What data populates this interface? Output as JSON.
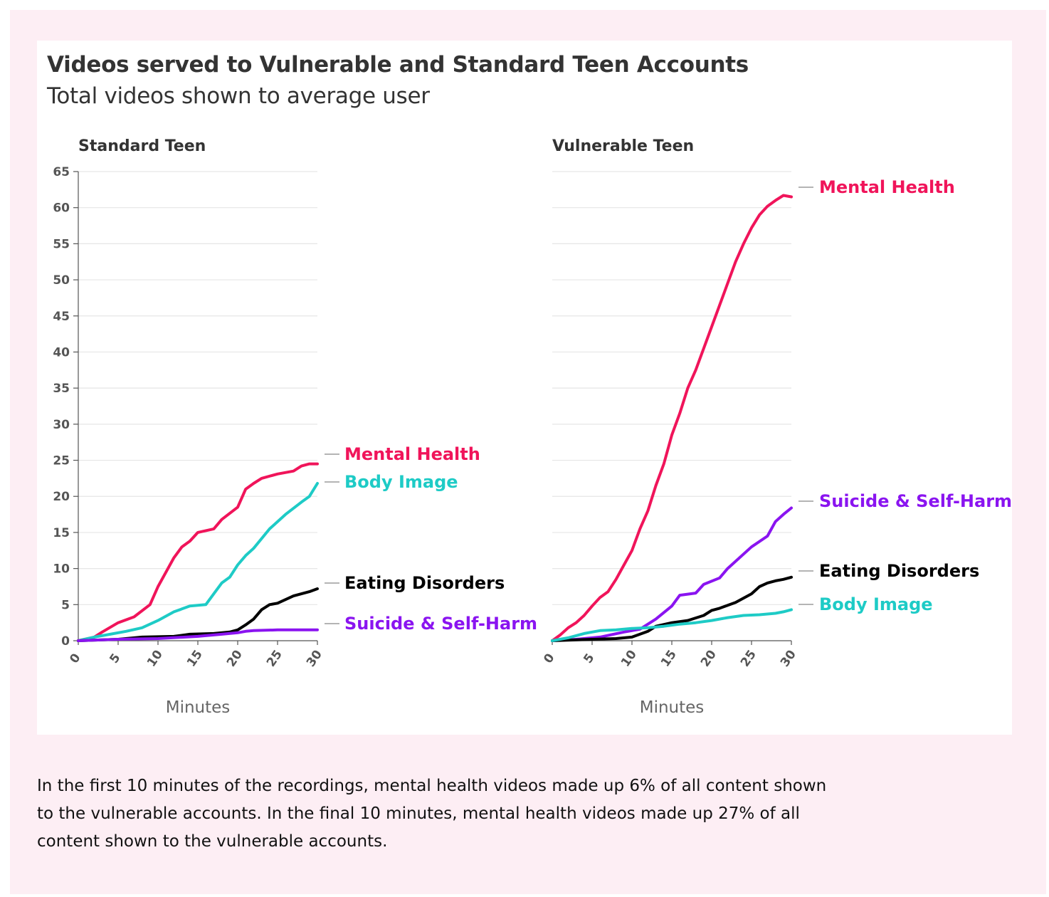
{
  "title": "Videos served to Vulnerable and Standard Teen Accounts",
  "subtitle": "Total videos shown to average user",
  "caption": "In the first 10 minutes of the recordings, mental health videos made up 6% of all content shown to the vulnerable accounts. In the final 10 minutes, mental health videos made up 27% of all content shown to the vulnerable accounts.",
  "colors": {
    "page_background": "#fdeef4",
    "mental_health": "#f0145a",
    "body_image": "#1ecbc6",
    "eating_disorders": "#000000",
    "suicide_self_harm": "#8a14f0"
  },
  "chart_data": [
    {
      "type": "line",
      "panel_title": "Standard Teen",
      "xlabel": "Minutes",
      "ylabel": "",
      "xlim": [
        0,
        30
      ],
      "ylim": [
        0,
        65
      ],
      "x_ticks": [
        "0",
        "5",
        "10",
        "15",
        "20",
        "25",
        "30"
      ],
      "y_ticks": [
        "0",
        "5",
        "10",
        "15",
        "20",
        "25",
        "30",
        "35",
        "40",
        "45",
        "50",
        "55",
        "60",
        "65"
      ],
      "grid": true,
      "legend": "direct labels at line ends",
      "series": [
        {
          "name": "Mental Health",
          "color": "#f0145a",
          "x": [
            0,
            2,
            3,
            5,
            7,
            9,
            10,
            11,
            12,
            13,
            14,
            15,
            17,
            18,
            20,
            21,
            22,
            23,
            25,
            27,
            28,
            29,
            30
          ],
          "y": [
            0,
            0.5,
            1.2,
            2.5,
            3.3,
            5,
            7.5,
            9.5,
            11.5,
            13,
            13.8,
            15,
            15.5,
            16.8,
            18.5,
            21,
            21.8,
            22.5,
            23.1,
            23.5,
            24.2,
            24.5,
            24.5
          ]
        },
        {
          "name": "Body Image",
          "color": "#1ecbc6",
          "x": [
            0,
            2,
            4,
            6,
            8,
            10,
            12,
            14,
            16,
            17,
            18,
            19,
            20,
            21,
            22,
            24,
            26,
            28,
            29,
            30
          ],
          "y": [
            0,
            0.5,
            0.9,
            1.3,
            1.8,
            2.8,
            4,
            4.8,
            5,
            6.5,
            8,
            8.8,
            10.5,
            11.8,
            12.8,
            15.5,
            17.5,
            19.2,
            20,
            21.8
          ]
        },
        {
          "name": "Eating Disorders",
          "color": "#000000",
          "x": [
            0,
            5,
            8,
            12,
            14,
            17,
            19,
            20,
            21,
            22,
            23,
            24,
            25,
            26,
            27,
            28,
            29,
            30
          ],
          "y": [
            0,
            0.2,
            0.5,
            0.6,
            0.9,
            1,
            1.2,
            1.5,
            2.2,
            3,
            4.3,
            5,
            5.2,
            5.7,
            6.2,
            6.5,
            6.8,
            7.2
          ]
        },
        {
          "name": "Suicide & Self-Harm",
          "color": "#8a14f0",
          "x": [
            0,
            5,
            10,
            15,
            18,
            20,
            21,
            22,
            25,
            30
          ],
          "y": [
            0,
            0.2,
            0.3,
            0.6,
            0.9,
            1.1,
            1.3,
            1.4,
            1.5,
            1.5
          ]
        }
      ]
    },
    {
      "type": "line",
      "panel_title": "Vulnerable Teen",
      "xlabel": "Minutes",
      "ylabel": "",
      "xlim": [
        0,
        30
      ],
      "ylim": [
        0,
        65
      ],
      "x_ticks": [
        "0",
        "5",
        "10",
        "15",
        "20",
        "25",
        "30"
      ],
      "grid": true,
      "legend": "direct labels at line ends",
      "series": [
        {
          "name": "Mental Health",
          "color": "#f0145a",
          "x": [
            0,
            1,
            2,
            3,
            4,
            5,
            6,
            7,
            8,
            9,
            10,
            11,
            12,
            13,
            14,
            15,
            16,
            17,
            18,
            19,
            20,
            21,
            22,
            23,
            24,
            25,
            26,
            27,
            28,
            29,
            30
          ],
          "y": [
            0,
            0.8,
            1.8,
            2.5,
            3.5,
            4.8,
            6,
            6.8,
            8.5,
            10.5,
            12.5,
            15.5,
            18,
            21.5,
            24.5,
            28.5,
            31.5,
            35,
            37.5,
            40.5,
            43.5,
            46.5,
            49.5,
            52.5,
            55,
            57.2,
            59,
            60.2,
            61,
            61.7,
            61.5
          ]
        },
        {
          "name": "Suicide & Self-Harm",
          "color": "#8a14f0",
          "x": [
            0,
            3,
            6,
            9,
            11,
            13,
            15,
            16,
            18,
            19,
            21,
            22,
            24,
            25,
            27,
            28,
            29,
            30
          ],
          "y": [
            0,
            0.2,
            0.5,
            1.2,
            1.6,
            3,
            4.8,
            6.3,
            6.6,
            7.8,
            8.7,
            10,
            12,
            13,
            14.5,
            16.5,
            17.5,
            18.4
          ]
        },
        {
          "name": "Eating Disorders",
          "color": "#000000",
          "x": [
            0,
            5,
            8,
            10,
            12,
            13,
            15,
            17,
            19,
            20,
            21,
            23,
            25,
            26,
            27,
            28,
            29,
            30
          ],
          "y": [
            0,
            0.2,
            0.3,
            0.5,
            1.3,
            2,
            2.5,
            2.8,
            3.5,
            4.2,
            4.5,
            5.3,
            6.5,
            7.5,
            8,
            8.3,
            8.5,
            8.8
          ]
        },
        {
          "name": "Body Image",
          "color": "#1ecbc6",
          "x": [
            0,
            2,
            4,
            5,
            6,
            8,
            10,
            12,
            14,
            16,
            18,
            20,
            22,
            24,
            26,
            28,
            29,
            30
          ],
          "y": [
            0,
            0.4,
            1,
            1.2,
            1.4,
            1.5,
            1.7,
            1.8,
            2,
            2.3,
            2.5,
            2.8,
            3.2,
            3.5,
            3.6,
            3.8,
            4,
            4.3
          ]
        }
      ]
    }
  ]
}
